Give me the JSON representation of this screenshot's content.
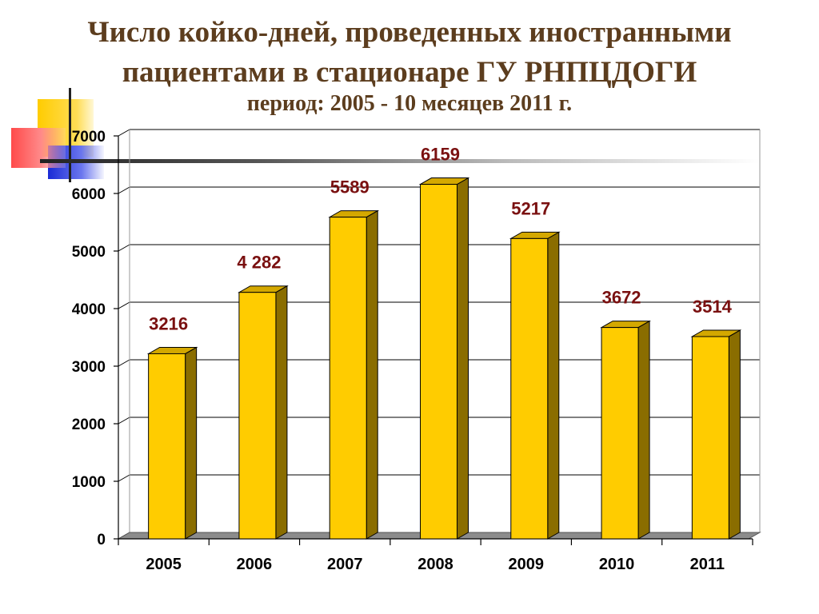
{
  "title_line1": "Число койко-дней, проведенных иностранными",
  "title_line2": "пациентами в стационаре ГУ РНПЦДОГИ",
  "subtitle": "период: 2005 - 10 месяцев 2011 г.",
  "chart_data": {
    "type": "bar",
    "categories": [
      "2005",
      "2006",
      "2007",
      "2008",
      "2009",
      "2010",
      "2011"
    ],
    "values": [
      3216,
      4282,
      5589,
      6159,
      5217,
      3672,
      3514
    ],
    "data_labels": [
      "3216",
      "4 282",
      "5589",
      "6159",
      "5217",
      "3672",
      "3514"
    ],
    "y_ticks": [
      "0",
      "1000",
      "2000",
      "3000",
      "4000",
      "5000",
      "6000",
      "7000"
    ],
    "ylim": [
      0,
      7000
    ],
    "grid": true,
    "legend": "none",
    "bar_front_color": "#ffcc00",
    "bar_side_color": "#8a6d00",
    "bar_top_color": "#d4a800",
    "label_color": "#7a1010",
    "floor_color": "#8c8c8c"
  }
}
